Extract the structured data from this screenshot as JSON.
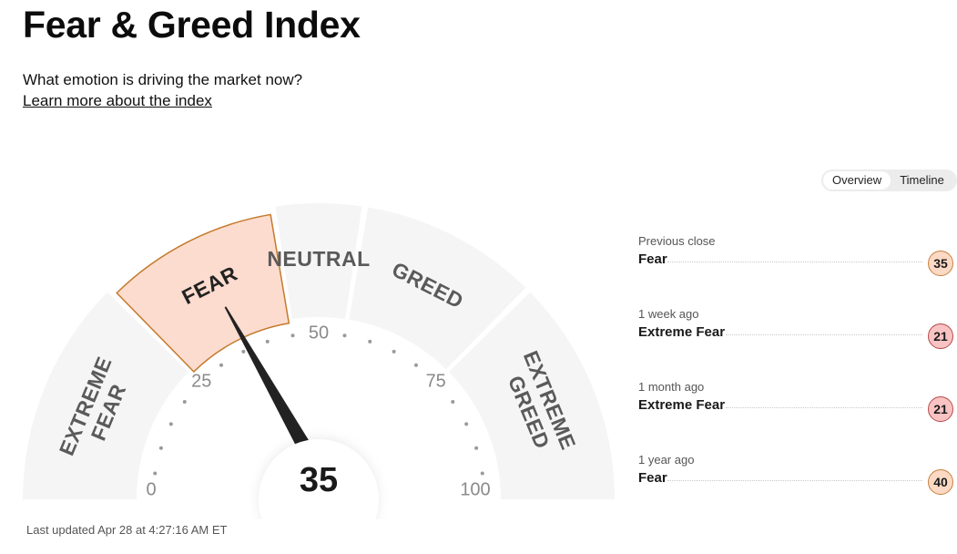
{
  "header": {
    "title": "Fear & Greed Index",
    "subtitle": "What emotion is driving the market now?",
    "learn_more": "Learn more about the index"
  },
  "gauge": {
    "value": 35,
    "value_text": "35",
    "current_zone": "Fear",
    "zones": {
      "extreme_fear_1": "EXTREME",
      "extreme_fear_2": "FEAR",
      "fear": "FEAR",
      "neutral": "NEUTRAL",
      "greed": "GREED",
      "extreme_greed_1": "EXTREME",
      "extreme_greed_2": "GREED"
    },
    "ticks": {
      "t0": "0",
      "t25": "25",
      "t50": "50",
      "t75": "75",
      "t100": "100"
    },
    "colors": {
      "segment": "#f5f5f5",
      "active_fill": "#fcdccf",
      "active_stroke": "#c47a2c",
      "needle": "#222222"
    }
  },
  "last_updated": "Last updated Apr 28 at 4:27:16 AM ET",
  "toggle": {
    "overview": "Overview",
    "timeline": "Timeline"
  },
  "history": [
    {
      "label": "Previous close",
      "value": "Fear",
      "score": "35",
      "tone": "fear"
    },
    {
      "label": "1 week ago",
      "value": "Extreme Fear",
      "score": "21",
      "tone": "extreme"
    },
    {
      "label": "1 month ago",
      "value": "Extreme Fear",
      "score": "21",
      "tone": "extreme"
    },
    {
      "label": "1 year ago",
      "value": "Fear",
      "score": "40",
      "tone": "fear"
    }
  ]
}
